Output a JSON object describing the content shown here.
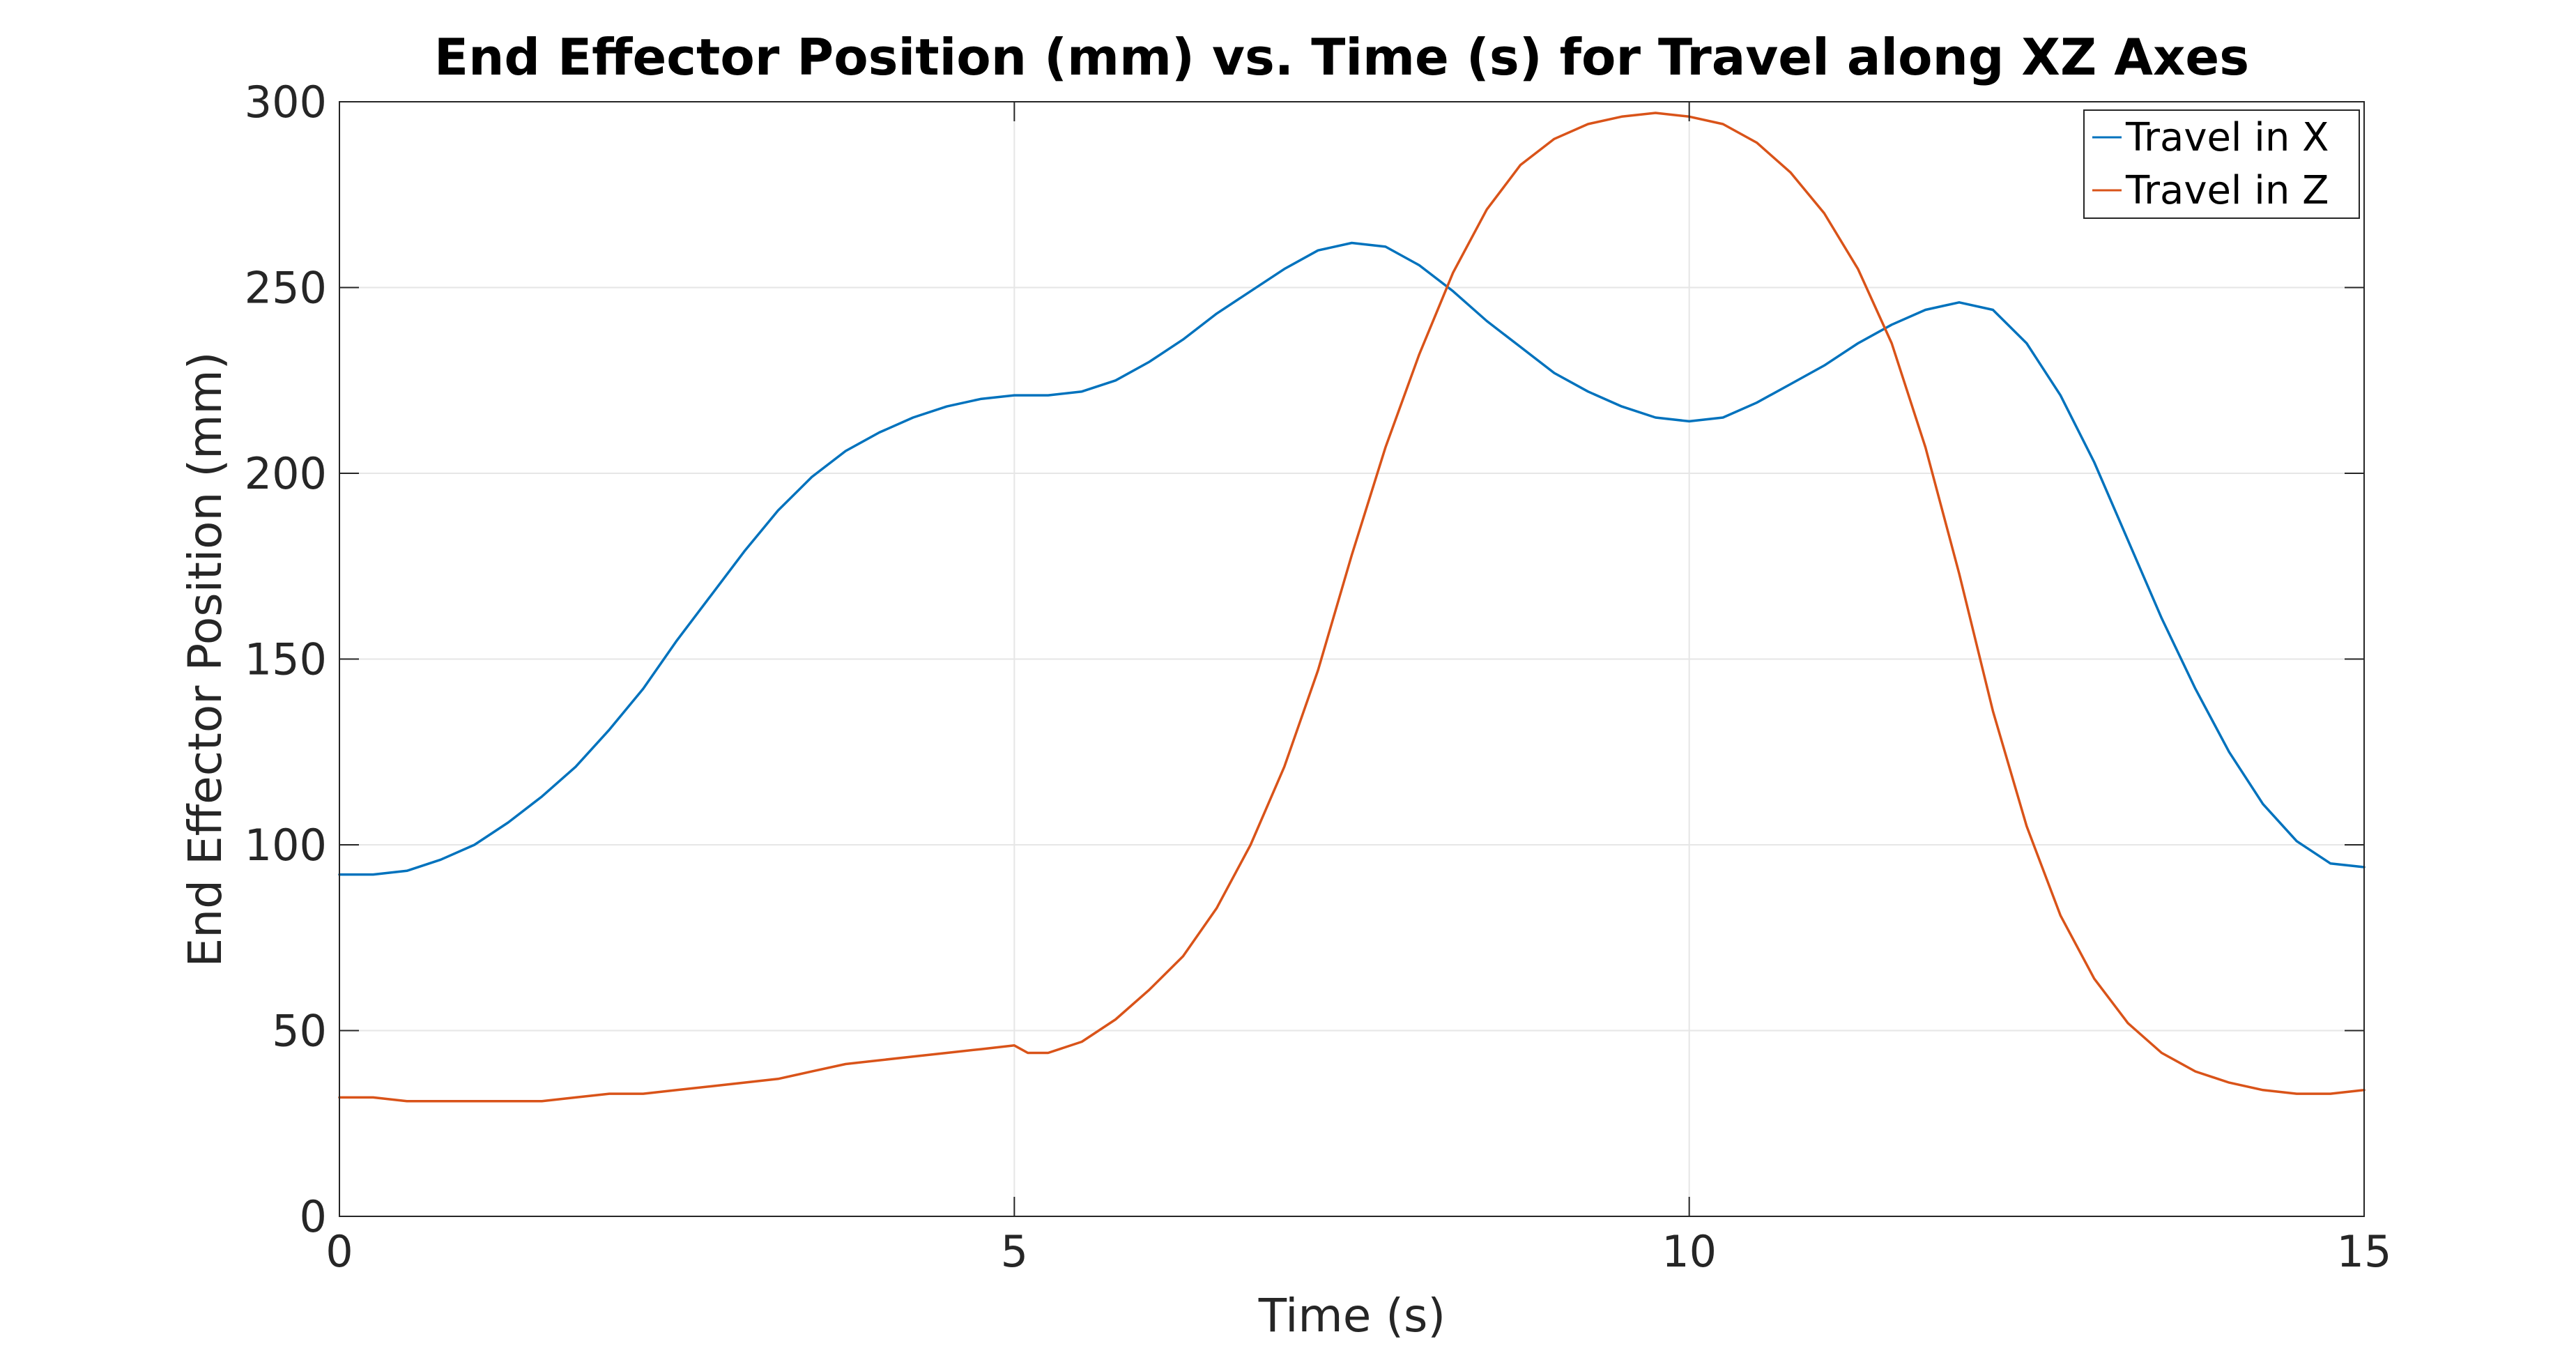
{
  "chart_data": {
    "type": "line",
    "title": "End Effector Position (mm) vs. Time (s) for Travel along XZ Axes",
    "xlabel": "Time (s)",
    "ylabel": "End Effector Position (mm)",
    "xlim": [
      0,
      15
    ],
    "ylim": [
      0,
      300
    ],
    "xticks": [
      0,
      5,
      10,
      15
    ],
    "yticks": [
      0,
      50,
      100,
      150,
      200,
      250,
      300
    ],
    "grid": true,
    "legend_position": "top-right",
    "series": [
      {
        "name": "Travel in X",
        "color": "#0072BD",
        "x": [
          0,
          0.25,
          0.5,
          0.75,
          1.0,
          1.25,
          1.5,
          1.75,
          2.0,
          2.25,
          2.5,
          2.75,
          3.0,
          3.25,
          3.5,
          3.75,
          4.0,
          4.25,
          4.5,
          4.75,
          5.0,
          5.25,
          5.5,
          5.75,
          6.0,
          6.25,
          6.5,
          6.75,
          7.0,
          7.25,
          7.5,
          7.75,
          8.0,
          8.25,
          8.5,
          8.75,
          9.0,
          9.25,
          9.5,
          9.75,
          10.0,
          10.25,
          10.5,
          10.75,
          11.0,
          11.25,
          11.5,
          11.75,
          12.0,
          12.25,
          12.5,
          12.75,
          13.0,
          13.25,
          13.5,
          13.75,
          14.0,
          14.25,
          14.5,
          14.75,
          15.0
        ],
        "y": [
          92,
          92,
          93,
          96,
          100,
          106,
          113,
          121,
          131,
          142,
          155,
          167,
          179,
          190,
          199,
          206,
          211,
          215,
          218,
          220,
          221,
          221,
          222,
          225,
          230,
          236,
          243,
          249,
          255,
          260,
          262,
          261,
          256,
          249,
          241,
          234,
          227,
          222,
          218,
          215,
          214,
          215,
          219,
          224,
          229,
          235,
          240,
          244,
          246,
          244,
          235,
          221,
          203,
          182,
          161,
          142,
          125,
          111,
          101,
          95,
          94
        ]
      },
      {
        "name": "Travel in Z",
        "color": "#D95319",
        "x": [
          0,
          0.25,
          0.5,
          0.75,
          1.0,
          1.25,
          1.5,
          1.75,
          2.0,
          2.25,
          2.5,
          2.75,
          3.0,
          3.25,
          3.5,
          3.75,
          4.0,
          4.25,
          4.5,
          4.75,
          5.0,
          5.1,
          5.25,
          5.5,
          5.75,
          6.0,
          6.25,
          6.5,
          6.75,
          7.0,
          7.25,
          7.5,
          7.75,
          8.0,
          8.25,
          8.5,
          8.75,
          9.0,
          9.25,
          9.5,
          9.75,
          10.0,
          10.25,
          10.5,
          10.75,
          11.0,
          11.25,
          11.5,
          11.75,
          12.0,
          12.25,
          12.5,
          12.75,
          13.0,
          13.25,
          13.5,
          13.75,
          14.0,
          14.25,
          14.5,
          14.75,
          15.0
        ],
        "y": [
          32,
          32,
          31,
          31,
          31,
          31,
          31,
          32,
          33,
          33,
          34,
          35,
          36,
          37,
          39,
          41,
          42,
          43,
          44,
          45,
          46,
          44,
          44,
          47,
          53,
          61,
          70,
          83,
          100,
          121,
          147,
          178,
          207,
          232,
          254,
          271,
          283,
          290,
          294,
          296,
          297,
          296,
          294,
          289,
          281,
          270,
          255,
          235,
          207,
          173,
          136,
          105,
          81,
          64,
          52,
          44,
          39,
          36,
          34,
          33,
          33,
          34
        ]
      }
    ]
  }
}
